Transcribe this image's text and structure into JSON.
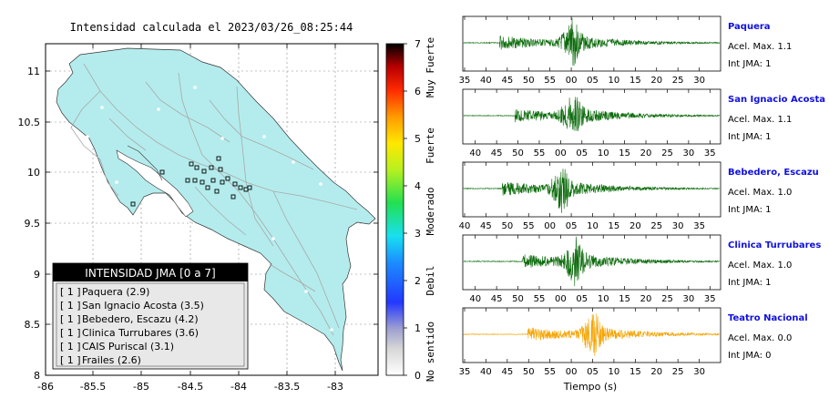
{
  "map": {
    "title": "Intensidad calculada el 2023/03/26_08:25:44",
    "x_ticks": [
      "-86",
      "-85.5",
      "-85",
      "-84.5",
      "-84",
      "-83.5",
      "-83"
    ],
    "y_ticks": [
      "11",
      "10.5",
      "10",
      "9.5",
      "9",
      "8.5",
      "8"
    ],
    "colorbar": {
      "ticks": [
        "0",
        "1",
        "2",
        "3",
        "4",
        "5",
        "6",
        "7"
      ],
      "labels": [
        "No sentido",
        "Debil",
        "Moderado",
        "Fuerte",
        "Muy Fuerte"
      ]
    },
    "legend": {
      "header": "INTENSIDAD JMA [0 a 7]",
      "items": [
        {
          "intensity": "[ 1 ]",
          "label": "Paquera (2.9)"
        },
        {
          "intensity": "[ 1 ]",
          "label": "San Ignacio Acosta (3.5)"
        },
        {
          "intensity": "[ 1 ]",
          "label": "Bebedero, Escazu (4.2)"
        },
        {
          "intensity": "[ 1 ]",
          "label": "Clinica Turrubares (3.6)"
        },
        {
          "intensity": "[ 1 ]",
          "label": "CAIS Puriscal (3.1)"
        },
        {
          "intensity": "[ 1 ]",
          "label": "Frailes (2.6)"
        }
      ]
    },
    "colors": {
      "land": "#b4eced",
      "roads": "#a8a8a8",
      "text": "#000000"
    }
  },
  "traces": {
    "xlabel": "Tiempo (s)",
    "panels": [
      {
        "name": "Paquera",
        "accel": "Acel. Max. 1.1",
        "jma": "Int JMA: 1",
        "color": "#0b6b0b",
        "ticks": [
          "35",
          "40",
          "45",
          "50",
          "55",
          "00",
          "05",
          "10",
          "15",
          "20",
          "25",
          "30"
        ],
        "tick_offset": 0,
        "burst": 0.14,
        "peak": 0.42
      },
      {
        "name": "San Ignacio Acosta",
        "accel": "Acel. Max. 1.1",
        "jma": "Int JMA: 1",
        "color": "#0b6b0b",
        "ticks": [
          "40",
          "45",
          "50",
          "55",
          "00",
          "05",
          "10",
          "15",
          "20",
          "25",
          "30",
          "35"
        ],
        "tick_offset": 0.5,
        "burst": 0.2,
        "peak": 0.42
      },
      {
        "name": "Bebedero, Escazu",
        "accel": "Acel. Max. 1.0",
        "jma": "Int JMA: 1",
        "color": "#0b6b0b",
        "ticks": [
          "40",
          "45",
          "50",
          "55",
          "00",
          "05",
          "10",
          "15",
          "20",
          "25",
          "30",
          "35"
        ],
        "tick_offset": 0,
        "burst": 0.15,
        "peak": 0.38
      },
      {
        "name": "Clinica Turrubares",
        "accel": "Acel. Max. 1.0",
        "jma": "Int JMA: 1",
        "color": "#0b6b0b",
        "ticks": [
          "40",
          "45",
          "50",
          "55",
          "00",
          "05",
          "10",
          "15",
          "20",
          "25",
          "30",
          "35"
        ],
        "tick_offset": 0.5,
        "burst": 0.23,
        "peak": 0.43
      },
      {
        "name": "Teatro Nacional",
        "accel": "Acel. Max. 0.0",
        "jma": "Int JMA: 0",
        "color": "#f5a300",
        "ticks": [
          "35",
          "40",
          "45",
          "50",
          "55",
          "00",
          "05",
          "10",
          "15",
          "20",
          "25",
          "30"
        ],
        "tick_offset": 0,
        "burst": 0.25,
        "peak": 0.5
      }
    ]
  }
}
